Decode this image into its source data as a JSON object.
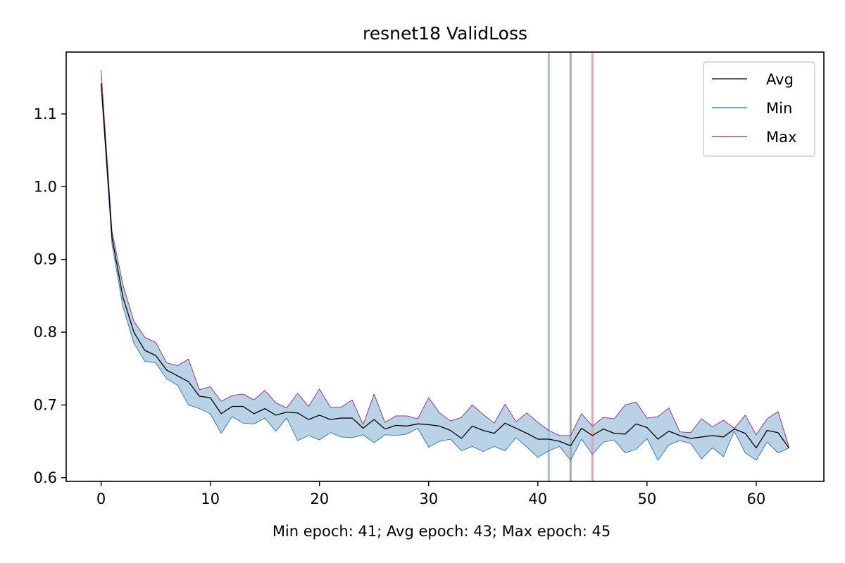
{
  "chart_data": {
    "type": "line",
    "title": "resnet18 ValidLoss",
    "xlabel": "Min epoch: 41; Avg epoch: 43; Max epoch: 45",
    "ylabel": "",
    "xlim": [
      -3.2,
      66.2
    ],
    "ylim": [
      0.595,
      1.185
    ],
    "xticks": [
      0,
      10,
      20,
      30,
      40,
      50,
      60
    ],
    "yticks": [
      0.6,
      0.7,
      0.8,
      0.9,
      1.0,
      1.1
    ],
    "ytick_labels": [
      "0.6",
      "0.7",
      "0.8",
      "0.9",
      "1.0",
      "1.1"
    ],
    "grid": false,
    "legend_position": "top-right",
    "x": [
      0,
      1,
      2,
      3,
      4,
      5,
      6,
      7,
      8,
      9,
      10,
      11,
      12,
      13,
      14,
      15,
      16,
      17,
      18,
      19,
      20,
      21,
      22,
      23,
      24,
      25,
      26,
      27,
      28,
      29,
      30,
      31,
      32,
      33,
      34,
      35,
      36,
      37,
      38,
      39,
      40,
      41,
      42,
      43,
      44,
      45,
      46,
      47,
      48,
      49,
      50,
      51,
      52,
      53,
      54,
      55,
      56,
      57,
      58,
      59,
      60,
      61,
      62,
      63
    ],
    "series": [
      {
        "name": "Avg",
        "color": "#000000",
        "values": [
          1.142,
          0.93,
          0.848,
          0.8,
          0.775,
          0.768,
          0.748,
          0.74,
          0.732,
          0.712,
          0.71,
          0.688,
          0.698,
          0.698,
          0.688,
          0.695,
          0.686,
          0.69,
          0.689,
          0.68,
          0.686,
          0.68,
          0.682,
          0.682,
          0.668,
          0.68,
          0.667,
          0.672,
          0.671,
          0.674,
          0.673,
          0.671,
          0.665,
          0.654,
          0.671,
          0.665,
          0.661,
          0.675,
          0.668,
          0.661,
          0.653,
          0.653,
          0.65,
          0.644,
          0.668,
          0.658,
          0.667,
          0.661,
          0.66,
          0.674,
          0.669,
          0.653,
          0.664,
          0.658,
          0.654,
          0.656,
          0.658,
          0.656,
          0.667,
          0.661,
          0.641,
          0.665,
          0.662,
          0.641
        ]
      },
      {
        "name": "Min",
        "color": "#1f77b4",
        "values": [
          1.138,
          0.92,
          0.835,
          0.785,
          0.76,
          0.758,
          0.736,
          0.727,
          0.7,
          0.695,
          0.688,
          0.661,
          0.684,
          0.675,
          0.674,
          0.682,
          0.664,
          0.682,
          0.651,
          0.658,
          0.652,
          0.662,
          0.656,
          0.655,
          0.659,
          0.648,
          0.659,
          0.658,
          0.66,
          0.668,
          0.642,
          0.65,
          0.653,
          0.637,
          0.643,
          0.636,
          0.643,
          0.637,
          0.655,
          0.642,
          0.628,
          0.637,
          0.643,
          0.624,
          0.653,
          0.632,
          0.649,
          0.652,
          0.634,
          0.639,
          0.654,
          0.624,
          0.645,
          0.651,
          0.647,
          0.626,
          0.641,
          0.629,
          0.664,
          0.634,
          0.624,
          0.649,
          0.634,
          0.641
        ]
      },
      {
        "name": "Max",
        "color": "#a0216a",
        "values": [
          1.16,
          0.938,
          0.865,
          0.815,
          0.793,
          0.786,
          0.758,
          0.754,
          0.763,
          0.721,
          0.725,
          0.705,
          0.713,
          0.715,
          0.707,
          0.72,
          0.703,
          0.696,
          0.716,
          0.698,
          0.722,
          0.697,
          0.697,
          0.707,
          0.673,
          0.715,
          0.676,
          0.685,
          0.685,
          0.681,
          0.71,
          0.689,
          0.678,
          0.683,
          0.7,
          0.687,
          0.675,
          0.701,
          0.677,
          0.689,
          0.676,
          0.665,
          0.658,
          0.658,
          0.688,
          0.671,
          0.683,
          0.681,
          0.7,
          0.704,
          0.682,
          0.684,
          0.696,
          0.663,
          0.662,
          0.681,
          0.67,
          0.679,
          0.668,
          0.686,
          0.659,
          0.681,
          0.691,
          0.643
        ]
      }
    ],
    "fill_between": {
      "lower": "Min",
      "upper": "Max",
      "color": "#7ba8d0"
    },
    "vlines": [
      {
        "x": 41,
        "color": "#9fc1dc"
      },
      {
        "x": 43,
        "color": "#a9a9a9"
      },
      {
        "x": 45,
        "color": "#e8a0b8"
      }
    ]
  }
}
